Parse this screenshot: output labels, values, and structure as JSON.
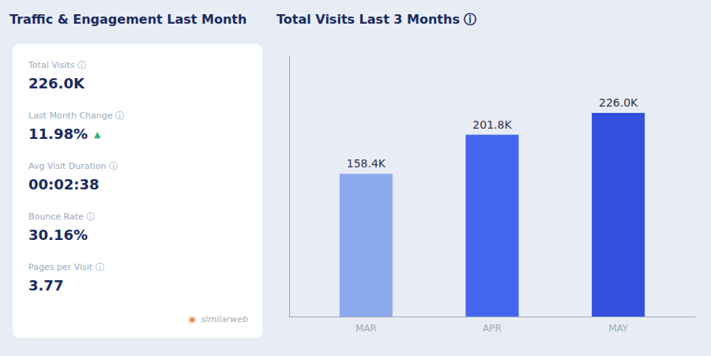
{
  "chart_data": {
    "type": "bar",
    "title": "Total Visits Last 3 Months  ⓘ",
    "categories": [
      "MAR",
      "APR",
      "MAY"
    ],
    "values": [
      158400,
      201800,
      226000
    ],
    "value_labels": [
      "158.4K",
      "201.8K",
      "226.0K"
    ],
    "colors": [
      "#8eaaee",
      "#4466ee",
      "#3350dd"
    ],
    "ylim": [
      0,
      290000
    ],
    "data_labels": true,
    "tick_labels": "x",
    "grid": false,
    "annotations": [
      "Traffic & Engagement Last Month",
      "Total Visits  ⓘ",
      "226.0K",
      "Last Month Change  ⓘ",
      "11.98%",
      "Avg Visit Duration  ⓘ",
      "00:02:38",
      "Bounce Rate  ⓘ",
      "30.16%",
      "Pages per Visit  ⓘ",
      "3.77",
      "▲",
      "◉",
      "similarweb"
    ]
  }
}
